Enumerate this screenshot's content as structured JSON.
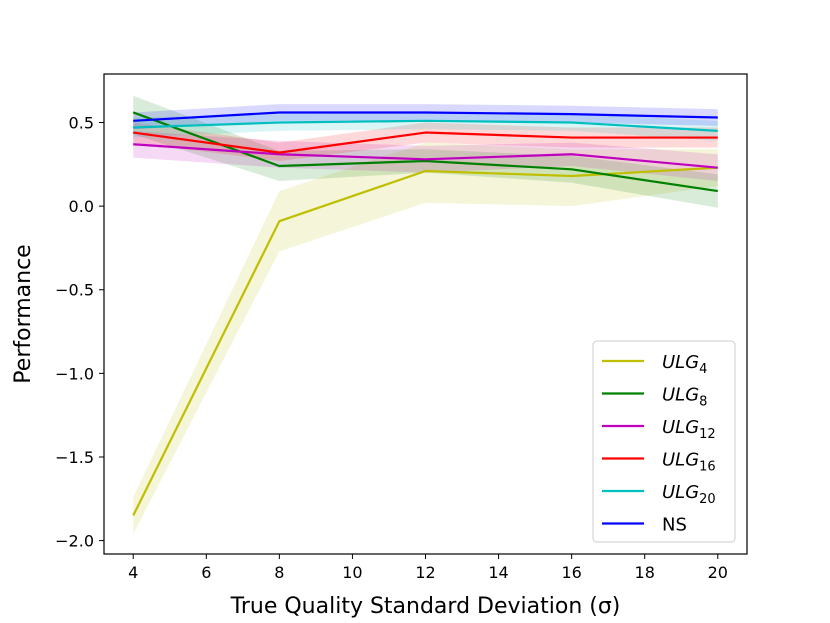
{
  "chart_data": {
    "type": "line",
    "title": "",
    "xlabel": "True Quality Standard Deviation (σ)",
    "ylabel": "Performance",
    "xlim": [
      3.2,
      20.8
    ],
    "ylim": [
      -2.08,
      0.79
    ],
    "xticks": [
      4,
      6,
      8,
      10,
      12,
      14,
      16,
      18,
      20
    ],
    "xtick_labels": [
      "4",
      "6",
      "8",
      "10",
      "12",
      "14",
      "16",
      "18",
      "20"
    ],
    "yticks": [
      -2.0,
      -1.5,
      -1.0,
      -0.5,
      0.0,
      0.5
    ],
    "ytick_labels": [
      "−2.0",
      "−1.5",
      "−1.0",
      "−0.5",
      "0.0",
      "0.5"
    ],
    "grid": false,
    "legend_position": "lower-right",
    "x": [
      4,
      8,
      12,
      16,
      20
    ],
    "series": [
      {
        "name": "ULG",
        "subscript": "4",
        "italic": true,
        "color": "#bfbf00",
        "values": [
          -1.85,
          -0.09,
          0.21,
          0.18,
          0.23
        ],
        "lower": [
          -1.96,
          -0.27,
          0.02,
          0.0,
          0.12
        ],
        "upper": [
          -1.74,
          0.09,
          0.38,
          0.34,
          0.34
        ]
      },
      {
        "name": "ULG",
        "subscript": "8",
        "italic": true,
        "color": "#008000",
        "values": [
          0.56,
          0.24,
          0.27,
          0.22,
          0.09
        ],
        "lower": [
          0.43,
          0.15,
          0.2,
          0.14,
          -0.01
        ],
        "upper": [
          0.66,
          0.33,
          0.34,
          0.3,
          0.19
        ]
      },
      {
        "name": "ULG",
        "subscript": "12",
        "italic": true,
        "color": "#bf00bf",
        "values": [
          0.37,
          0.31,
          0.28,
          0.31,
          0.23
        ],
        "lower": [
          0.29,
          0.23,
          0.2,
          0.24,
          0.15
        ],
        "upper": [
          0.45,
          0.39,
          0.36,
          0.38,
          0.31
        ]
      },
      {
        "name": "ULG",
        "subscript": "16",
        "italic": true,
        "color": "#ff0000",
        "values": [
          0.44,
          0.32,
          0.44,
          0.41,
          0.41
        ],
        "lower": [
          0.38,
          0.27,
          0.38,
          0.35,
          0.35
        ],
        "upper": [
          0.5,
          0.38,
          0.5,
          0.47,
          0.47
        ]
      },
      {
        "name": "ULG",
        "subscript": "20",
        "italic": true,
        "color": "#00bfbf",
        "values": [
          0.47,
          0.5,
          0.51,
          0.5,
          0.45
        ],
        "lower": [
          0.41,
          0.45,
          0.46,
          0.45,
          0.39
        ],
        "upper": [
          0.53,
          0.55,
          0.56,
          0.55,
          0.51
        ]
      },
      {
        "name": "NS",
        "subscript": "",
        "italic": false,
        "color": "#0000ff",
        "values": [
          0.51,
          0.56,
          0.56,
          0.55,
          0.53
        ],
        "lower": [
          0.46,
          0.51,
          0.51,
          0.5,
          0.48
        ],
        "upper": [
          0.56,
          0.61,
          0.61,
          0.6,
          0.58
        ]
      }
    ]
  }
}
